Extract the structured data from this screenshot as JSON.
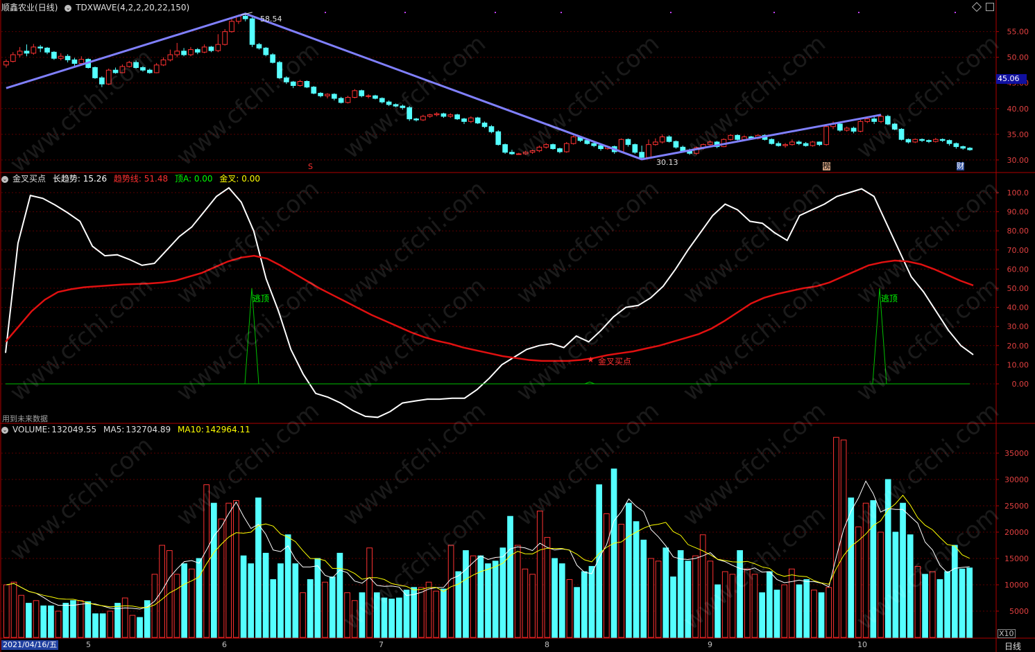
{
  "main_panel": {
    "stock_name": "顺鑫农业",
    "period": "(日线)",
    "indicator_label": "TDXWAVE(4,2,2,20,22,150)",
    "price_label": "45.06",
    "high_label": "58.54",
    "low_label": "30.13",
    "markers": [
      "S",
      "榜",
      "财"
    ],
    "y_ticks": [
      "55.00",
      "50.00",
      "45.00",
      "40.00",
      "35.00",
      "30.00"
    ]
  },
  "indicator_panel": {
    "title": "金叉买点",
    "fields": [
      {
        "name": "长趋势:",
        "value": "15.26",
        "color": "#ffffff"
      },
      {
        "name": "趋势线:",
        "value": "51.48",
        "color": "#ff3030"
      },
      {
        "name": "顶A:",
        "value": "0.00",
        "color": "#00ff00"
      },
      {
        "name": "金叉:",
        "value": "0.00",
        "color": "#ffff00"
      }
    ],
    "signals": [
      "逃顶",
      "金叉买点",
      "逃顶"
    ],
    "footer_note": "用到未来数据",
    "y_ticks": [
      "100.0",
      "90.00",
      "80.00",
      "70.00",
      "60.00",
      "50.00",
      "40.00",
      "30.00",
      "20.00",
      "10.00",
      "0.00"
    ]
  },
  "volume_panel": {
    "title": "VOLUME:",
    "volume": "132049.55",
    "ma5_label": "MA5:",
    "ma5": "132704.89",
    "ma10_label": "MA10:",
    "ma10": "142964.11",
    "y_ticks": [
      "35000",
      "30000",
      "25000",
      "20000",
      "15000",
      "10000",
      "5000"
    ],
    "unit": "X10"
  },
  "x_axis": {
    "date_label": "2021/04/16/五",
    "month_labels": [
      "5",
      "6",
      "7",
      "8",
      "9",
      "10"
    ],
    "period_label": "日线"
  },
  "watermark": "www.cfchi.com",
  "colors": {
    "up": "#ff3232",
    "down": "#54ffff",
    "wave": "#8080ff",
    "grid": "#5a0000",
    "axis": "#b00000"
  },
  "chart_data": {
    "type": "candlestick",
    "price_range": [
      28.5,
      59
    ],
    "candles": [
      [
        48.5,
        49.2,
        48.0,
        49.6
      ],
      [
        49.2,
        50.5,
        49.0,
        51.0
      ],
      [
        50.5,
        51.2,
        50.0,
        52.0
      ],
      [
        51.2,
        50.8,
        50.2,
        52.5
      ],
      [
        50.8,
        52.0,
        50.5,
        52.6
      ],
      [
        52.0,
        51.8,
        51.0,
        52.4
      ],
      [
        51.8,
        51.0,
        50.6,
        52.0
      ],
      [
        51.0,
        49.8,
        49.5,
        51.2
      ],
      [
        49.8,
        50.2,
        49.4,
        50.8
      ],
      [
        50.2,
        49.5,
        49.0,
        50.6
      ],
      [
        49.5,
        48.8,
        48.3,
        49.9
      ],
      [
        48.8,
        49.6,
        48.5,
        50.2
      ],
      [
        49.6,
        48.0,
        47.8,
        49.8
      ],
      [
        48.0,
        46.0,
        45.8,
        48.2
      ],
      [
        46.0,
        44.8,
        44.2,
        46.3
      ],
      [
        44.8,
        47.5,
        44.6,
        47.8
      ],
      [
        47.5,
        47.0,
        46.8,
        48.0
      ],
      [
        47.0,
        48.2,
        46.9,
        48.6
      ],
      [
        48.2,
        49.0,
        48.0,
        49.3
      ],
      [
        49.0,
        48.0,
        47.8,
        49.4
      ],
      [
        48.0,
        47.5,
        47.2,
        48.3
      ],
      [
        47.5,
        47.0,
        46.8,
        47.8
      ],
      [
        47.0,
        48.5,
        46.9,
        48.9
      ],
      [
        48.5,
        49.5,
        48.3,
        50.0
      ],
      [
        49.5,
        50.5,
        49.2,
        51.5
      ],
      [
        50.5,
        51.2,
        50.0,
        52.8
      ],
      [
        51.2,
        50.5,
        50.2,
        51.8
      ],
      [
        50.5,
        51.5,
        50.2,
        52.0
      ],
      [
        51.5,
        51.0,
        50.6,
        51.8
      ],
      [
        51.0,
        52.0,
        50.8,
        52.5
      ],
      [
        52.0,
        51.3,
        51.0,
        52.2
      ],
      [
        51.3,
        52.5,
        51.0,
        54.5
      ],
      [
        52.5,
        55.0,
        52.3,
        55.5
      ],
      [
        55.0,
        57.0,
        54.8,
        57.5
      ],
      [
        57.0,
        58.0,
        56.5,
        58.3
      ],
      [
        58.0,
        57.5,
        57.0,
        58.5
      ],
      [
        57.5,
        52.5,
        52.0,
        57.8
      ],
      [
        52.5,
        51.8,
        51.5,
        52.8
      ],
      [
        51.8,
        50.5,
        50.2,
        52.0
      ],
      [
        50.5,
        49.0,
        48.8,
        50.8
      ],
      [
        49.0,
        46.0,
        45.8,
        49.3
      ],
      [
        46.0,
        45.2,
        44.8,
        46.3
      ],
      [
        45.2,
        44.5,
        44.0,
        45.4
      ],
      [
        44.5,
        45.3,
        44.3,
        45.6
      ],
      [
        45.3,
        44.2,
        44.0,
        45.5
      ],
      [
        44.2,
        43.0,
        42.8,
        44.4
      ],
      [
        43.0,
        42.5,
        42.2,
        43.2
      ],
      [
        42.5,
        42.8,
        42.0,
        43.0
      ],
      [
        42.8,
        42.0,
        41.6,
        43.0
      ],
      [
        42.0,
        41.2,
        41.0,
        42.3
      ],
      [
        41.2,
        42.2,
        41.0,
        42.5
      ],
      [
        42.2,
        43.5,
        42.0,
        43.8
      ],
      [
        43.5,
        42.5,
        42.2,
        43.7
      ],
      [
        42.5,
        42.5,
        42.0,
        42.8
      ],
      [
        42.5,
        42.0,
        41.8,
        42.7
      ],
      [
        42.0,
        41.3,
        41.0,
        42.2
      ],
      [
        41.3,
        40.8,
        40.5,
        41.6
      ],
      [
        40.8,
        40.5,
        40.3,
        41.0
      ],
      [
        40.5,
        40.2,
        39.8,
        40.8
      ],
      [
        40.2,
        38.0,
        37.6,
        40.5
      ],
      [
        38.0,
        37.8,
        37.5,
        38.2
      ],
      [
        37.8,
        38.5,
        37.6,
        38.8
      ],
      [
        38.5,
        38.8,
        38.2,
        39.0
      ],
      [
        38.8,
        39.0,
        38.5,
        39.3
      ],
      [
        39.0,
        38.5,
        38.2,
        39.2
      ],
      [
        38.5,
        38.8,
        38.2,
        39.1
      ],
      [
        38.8,
        38.0,
        37.8,
        39.0
      ],
      [
        38.0,
        37.5,
        37.0,
        38.2
      ],
      [
        37.5,
        38.2,
        37.2,
        38.5
      ],
      [
        38.2,
        37.2,
        37.0,
        38.4
      ],
      [
        37.2,
        36.5,
        36.2,
        37.5
      ],
      [
        36.5,
        35.5,
        35.2,
        36.8
      ],
      [
        35.5,
        33.0,
        32.8,
        35.8
      ],
      [
        33.0,
        31.5,
        31.2,
        33.2
      ],
      [
        31.5,
        31.2,
        31.0,
        32.0
      ],
      [
        31.2,
        31.2,
        31.0,
        31.4
      ],
      [
        31.2,
        31.5,
        31.0,
        31.8
      ],
      [
        31.5,
        31.8,
        31.2,
        32.0
      ],
      [
        31.8,
        32.5,
        31.5,
        32.8
      ],
      [
        32.5,
        33.0,
        32.2,
        33.3
      ],
      [
        33.0,
        32.2,
        32.0,
        33.2
      ],
      [
        32.2,
        31.6,
        31.3,
        32.4
      ],
      [
        31.6,
        33.2,
        31.4,
        33.5
      ],
      [
        33.2,
        34.5,
        33.0,
        34.8
      ],
      [
        34.5,
        33.8,
        33.5,
        34.7
      ],
      [
        33.8,
        33.2,
        33.0,
        34.0
      ],
      [
        33.2,
        32.8,
        32.5,
        33.4
      ],
      [
        32.8,
        32.2,
        31.8,
        33.0
      ],
      [
        32.2,
        32.6,
        32.0,
        32.8
      ],
      [
        32.6,
        31.6,
        31.2,
        32.8
      ],
      [
        31.6,
        34.0,
        31.4,
        34.2
      ],
      [
        34.0,
        33.0,
        32.6,
        34.2
      ],
      [
        33.0,
        31.5,
        31.2,
        33.2
      ],
      [
        31.5,
        30.5,
        30.13,
        32.8
      ],
      [
        30.5,
        33.0,
        30.4,
        34.0
      ],
      [
        33.0,
        33.5,
        32.8,
        34.2
      ],
      [
        33.5,
        34.5,
        33.2,
        35.0
      ],
      [
        34.5,
        33.6,
        33.4,
        34.8
      ],
      [
        33.6,
        32.5,
        32.2,
        33.8
      ],
      [
        32.5,
        31.8,
        31.6,
        32.8
      ],
      [
        31.8,
        31.3,
        31.0,
        32.2
      ],
      [
        31.3,
        32.4,
        31.0,
        32.6
      ],
      [
        32.4,
        33.0,
        32.0,
        33.2
      ],
      [
        33.0,
        33.5,
        32.8,
        33.8
      ],
      [
        33.5,
        32.6,
        32.3,
        33.7
      ],
      [
        32.6,
        34.0,
        32.5,
        34.2
      ],
      [
        34.0,
        34.8,
        33.8,
        35.0
      ],
      [
        34.8,
        34.0,
        33.8,
        35.0
      ],
      [
        34.0,
        34.5,
        33.8,
        34.8
      ],
      [
        34.5,
        34.2,
        34.0,
        34.7
      ],
      [
        34.2,
        34.8,
        34.0,
        35.0
      ],
      [
        34.8,
        34.0,
        33.8,
        35.0
      ],
      [
        34.0,
        33.2,
        33.0,
        34.2
      ],
      [
        33.2,
        32.8,
        32.6,
        33.6
      ],
      [
        32.8,
        33.0,
        32.4,
        33.3
      ],
      [
        33.0,
        33.5,
        32.8,
        34.0
      ],
      [
        33.5,
        33.2,
        32.9,
        33.8
      ],
      [
        33.2,
        32.8,
        32.6,
        33.5
      ],
      [
        32.8,
        33.5,
        32.6,
        33.7
      ],
      [
        33.5,
        33.0,
        32.7,
        33.6
      ],
      [
        33.0,
        36.5,
        32.8,
        36.8
      ],
      [
        36.5,
        37.0,
        36.0,
        37.5
      ],
      [
        37.0,
        35.8,
        35.5,
        37.2
      ],
      [
        35.8,
        36.2,
        35.5,
        36.5
      ],
      [
        36.2,
        35.6,
        35.2,
        36.5
      ],
      [
        35.6,
        37.5,
        35.4,
        37.8
      ],
      [
        37.5,
        38.0,
        37.2,
        38.5
      ],
      [
        38.0,
        37.5,
        37.0,
        38.5
      ],
      [
        37.5,
        38.5,
        37.2,
        38.8
      ],
      [
        38.5,
        37.0,
        36.8,
        38.8
      ],
      [
        37.0,
        36.0,
        35.8,
        37.2
      ],
      [
        36.0,
        34.0,
        33.8,
        36.2
      ],
      [
        34.0,
        33.5,
        33.2,
        34.2
      ],
      [
        33.5,
        34.0,
        33.3,
        34.2
      ],
      [
        34.0,
        33.8,
        33.5,
        34.2
      ],
      [
        33.8,
        33.6,
        33.3,
        34.0
      ],
      [
        33.6,
        34.0,
        33.4,
        34.3
      ],
      [
        34.0,
        33.8,
        33.5,
        34.2
      ],
      [
        33.8,
        33.2,
        32.8,
        34.0
      ],
      [
        33.2,
        32.6,
        32.2,
        33.4
      ],
      [
        32.6,
        32.3,
        32.0,
        32.8
      ],
      [
        32.3,
        32.0,
        31.8,
        32.5
      ]
    ],
    "trend_line": [
      16.2,
      73.5,
      98.5,
      97.0,
      93.5,
      89.5,
      85.0,
      72.0,
      67.0,
      67.5,
      65.0,
      62.0,
      63.0,
      70.0,
      77.0,
      82.0,
      90.0,
      98.0,
      102.5,
      95.0,
      80.0,
      55.0,
      38.0,
      18.0,
      5.0,
      -5.0,
      -7.0,
      -10.0,
      -14.0,
      -17.0,
      -17.5,
      -14.5,
      -10.0,
      -9.0,
      -8.0,
      -8.0,
      -7.5,
      -7.5,
      -3.0,
      3.0,
      10.0,
      14.0,
      18.0,
      20.0,
      21.0,
      19.0,
      25.0,
      22.0,
      28.0,
      35.0,
      40.0,
      41.0,
      45.0,
      51.0,
      60.0,
      70.0,
      79.0,
      88.0,
      94.0,
      91.0,
      85.0,
      84.0,
      79.0,
      75.0,
      88.0,
      91.0,
      94.0,
      98.0,
      100.0,
      102.0,
      98.0,
      84.0,
      70.0,
      56.0,
      48.0,
      38.0,
      28.0,
      20.0,
      15.26
    ],
    "trend_ma": [
      22.0,
      30.0,
      38.0,
      44.0,
      48.0,
      49.5,
      50.5,
      51.0,
      51.5,
      52.0,
      52.2,
      52.5,
      53.0,
      54.0,
      56.0,
      58.0,
      61.0,
      64.0,
      66.0,
      67.0,
      65.5,
      62.0,
      58.0,
      54.0,
      50.0,
      46.5,
      43.0,
      39.5,
      36.0,
      33.0,
      30.0,
      27.0,
      24.5,
      22.5,
      21.0,
      19.0,
      17.5,
      16.0,
      14.5,
      13.5,
      12.5,
      12.0,
      12.0,
      12.0,
      12.5,
      13.5,
      15.0,
      16.0,
      17.0,
      18.5,
      20.0,
      22.0,
      24.0,
      26.0,
      29.0,
      33.0,
      37.5,
      42.0,
      45.0,
      47.0,
      48.5,
      50.0,
      51.0,
      53.0,
      56.0,
      59.0,
      62.0,
      63.5,
      64.5,
      64.0,
      62.5,
      60.0,
      57.0,
      54.0,
      51.48
    ],
    "volume": [
      10,
      10.5,
      8,
      6.5,
      7,
      6,
      6,
      5,
      6.5,
      7,
      7,
      6.8,
      4.5,
      4.5,
      5,
      6.5,
      7.5,
      4.2,
      3.8,
      7,
      12,
      17.5,
      16.5,
      12,
      14,
      13,
      15,
      29,
      25.5,
      22.5,
      25.5,
      26,
      15.5,
      14,
      26.5,
      16,
      11,
      14,
      19.5,
      14,
      8.5,
      11,
      15,
      10.5,
      11.5,
      16,
      8.5,
      7,
      8.5,
      17,
      8.5,
      7.5,
      7.3,
      7.5,
      9,
      9.5,
      9.5,
      10.5,
      8.8,
      9.2,
      17.5,
      12.5,
      16.5,
      15.5,
      15.5,
      14,
      14.5,
      17,
      23,
      17.5,
      13,
      12,
      24,
      19,
      15,
      14,
      11,
      9.5,
      12.5,
      13.5,
      29,
      23.5,
      32,
      21.5,
      25.5,
      22,
      18.5,
      15,
      14.5,
      17,
      11.5,
      16.5,
      14.5,
      15.5,
      19.5,
      14.5,
      10,
      12.5,
      12,
      16.5,
      13,
      12,
      8.5,
      12.5,
      9,
      10,
      13,
      10,
      11,
      9,
      8.5,
      9.5,
      38,
      37.5,
      26.5,
      21,
      25.5,
      26,
      20,
      30,
      20,
      25.5,
      19.5,
      13.5,
      12,
      12.5,
      11,
      12.5,
      17.5,
      13,
      13.2
    ]
  }
}
